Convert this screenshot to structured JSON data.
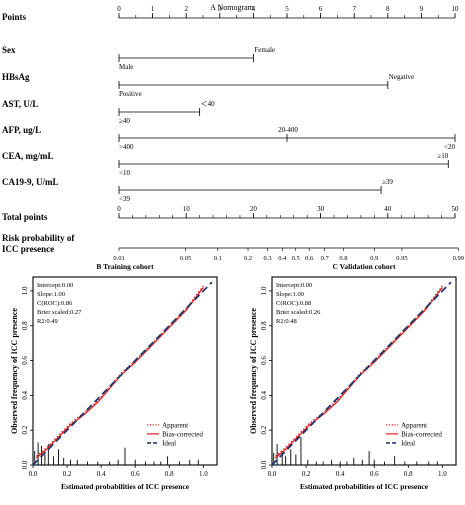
{
  "figure": {
    "nomogram_title": "A  Nomogram",
    "panel_b_title": "B  Training cohort",
    "panel_c_title": "C  Validation cohort"
  },
  "nomogram": {
    "rows": [
      {
        "key": "points",
        "label": "Points",
        "kind": "scale",
        "tick_values": [
          0,
          1,
          2,
          3,
          4,
          5,
          6,
          7,
          8,
          9,
          10
        ],
        "minor_step": 0.5
      },
      {
        "key": "sex",
        "label": "Sex",
        "kind": "variable",
        "levels": [
          {
            "text": "Male",
            "points": 0,
            "above": false
          },
          {
            "text": "Female",
            "points": 4,
            "above": true
          }
        ]
      },
      {
        "key": "hbsag",
        "label": "HBsAg",
        "kind": "variable",
        "levels": [
          {
            "text": "Positive",
            "points": 0,
            "above": false
          },
          {
            "text": "Negative",
            "points": 8,
            "above": true
          }
        ]
      },
      {
        "key": "ast",
        "label": "AST, U/L",
        "kind": "variable",
        "levels": [
          {
            "text": "≥40",
            "points": 0,
            "above": false
          },
          {
            "text": "＜40",
            "points": 2.4,
            "above": true
          }
        ]
      },
      {
        "key": "afp",
        "label": "AFP, ug/L",
        "kind": "variable",
        "levels": [
          {
            "text": ">400",
            "points": 0,
            "above": false
          },
          {
            "text": "20-400",
            "points": 5,
            "above": true
          },
          {
            "text": "<20",
            "points": 10,
            "above": false
          }
        ]
      },
      {
        "key": "cea",
        "label": "CEA, mg/mL",
        "kind": "variable",
        "levels": [
          {
            "text": "<10",
            "points": 0,
            "above": false
          },
          {
            "text": "≥10",
            "points": 9.8,
            "above": true
          }
        ]
      },
      {
        "key": "ca199",
        "label": "CA19-9, U/mL",
        "kind": "variable",
        "levels": [
          {
            "text": "<39",
            "points": 0,
            "above": false
          },
          {
            "text": "≥39",
            "points": 7.8,
            "above": true
          }
        ]
      },
      {
        "key": "total",
        "label": "Total points",
        "kind": "scale",
        "tick_values": [
          0,
          10,
          20,
          30,
          40,
          50
        ],
        "minor_step": 2
      },
      {
        "key": "risk",
        "label_lines": [
          "Risk probability of",
          "ICC presence"
        ],
        "kind": "risk",
        "ticks": [
          {
            "text": "0.01",
            "total": 0.0
          },
          {
            "text": "0.05",
            "total": 9.9
          },
          {
            "text": "0.1",
            "total": 14.7
          },
          {
            "text": "0.2",
            "total": 19.2
          },
          {
            "text": "0.3",
            "total": 22.1
          },
          {
            "text": "0.4",
            "total": 24.3
          },
          {
            "text": "0.5",
            "total": 26.3
          },
          {
            "text": "0.6",
            "total": 28.3
          },
          {
            "text": "0.7",
            "total": 30.6
          },
          {
            "text": "0.8",
            "total": 33.4
          },
          {
            "text": "0.9",
            "total": 38.0
          },
          {
            "text": "0.95",
            "total": 42.1
          },
          {
            "text": "0.99",
            "total": 50.5
          }
        ]
      }
    ]
  },
  "chart_data": [
    {
      "type": "line",
      "title": "B  Training cohort",
      "xlabel": "Estimated probabilities of ICC presence",
      "ylabel": "Observed frequency of ICC presence",
      "xlim": [
        0,
        1.08
      ],
      "ylim": [
        0,
        1.08
      ],
      "x_ticks": [
        0.0,
        0.2,
        0.4,
        0.6,
        0.8,
        1.0
      ],
      "y_ticks": [
        0.0,
        0.2,
        0.4,
        0.6,
        0.8,
        1.0
      ],
      "stats": [
        "Intercept:0.00",
        "Slope:1.00",
        "C(ROC):0.86",
        "Brier scaled:0.27",
        "R2:0.49"
      ],
      "legend_position": "bottom-right",
      "series": [
        {
          "name": "Apparent",
          "style": "dotted",
          "color": "#e41a1c",
          "x": [
            0.02,
            0.08,
            0.15,
            0.22,
            0.3,
            0.38,
            0.45,
            0.52,
            0.6,
            0.7,
            0.8,
            0.9,
            1.0
          ],
          "y": [
            0.05,
            0.1,
            0.17,
            0.24,
            0.3,
            0.37,
            0.45,
            0.53,
            0.6,
            0.7,
            0.8,
            0.9,
            1.03
          ]
        },
        {
          "name": "Bias-corrected",
          "style": "solid",
          "color": "#e41a1c",
          "x": [
            0.02,
            0.08,
            0.15,
            0.22,
            0.3,
            0.38,
            0.45,
            0.52,
            0.6,
            0.7,
            0.8,
            0.9,
            1.0
          ],
          "y": [
            0.04,
            0.09,
            0.16,
            0.23,
            0.29,
            0.36,
            0.44,
            0.52,
            0.59,
            0.69,
            0.79,
            0.89,
            1.02
          ]
        },
        {
          "name": "Ideal",
          "style": "dashed",
          "color": "#1f3a70",
          "x": [
            0,
            1.05
          ],
          "y": [
            0,
            1.05
          ]
        }
      ],
      "rug": [
        {
          "x": 0.01,
          "h": 0.08
        },
        {
          "x": 0.03,
          "h": 0.13
        },
        {
          "x": 0.05,
          "h": 0.11
        },
        {
          "x": 0.07,
          "h": 0.06
        },
        {
          "x": 0.09,
          "h": 0.12
        },
        {
          "x": 0.12,
          "h": 0.05
        },
        {
          "x": 0.15,
          "h": 0.09
        },
        {
          "x": 0.18,
          "h": 0.04
        },
        {
          "x": 0.22,
          "h": 0.03
        },
        {
          "x": 0.26,
          "h": 0.03
        },
        {
          "x": 0.32,
          "h": 0.02
        },
        {
          "x": 0.38,
          "h": 0.02
        },
        {
          "x": 0.45,
          "h": 0.02
        },
        {
          "x": 0.5,
          "h": 0.03
        },
        {
          "x": 0.54,
          "h": 0.1
        },
        {
          "x": 0.6,
          "h": 0.03
        },
        {
          "x": 0.66,
          "h": 0.02
        },
        {
          "x": 0.71,
          "h": 0.02
        },
        {
          "x": 0.75,
          "h": 0.02
        },
        {
          "x": 0.79,
          "h": 0.05
        },
        {
          "x": 0.86,
          "h": 0.02
        },
        {
          "x": 0.92,
          "h": 0.03
        },
        {
          "x": 0.97,
          "h": 0.03
        }
      ]
    },
    {
      "type": "line",
      "title": "C  Validation cohort",
      "xlabel": "Estimated probabilities of ICC presence",
      "ylabel": "Observed frequency of ICC presence",
      "xlim": [
        0,
        1.08
      ],
      "ylim": [
        0,
        1.08
      ],
      "x_ticks": [
        0.0,
        0.2,
        0.4,
        0.6,
        0.8,
        1.0
      ],
      "y_ticks": [
        0.0,
        0.2,
        0.4,
        0.6,
        0.8,
        1.0
      ],
      "stats": [
        "Intercept:0.00",
        "Slope:1.00",
        "C(ROC):0.88",
        "Brier scaled:0.26",
        "R2:0.48"
      ],
      "legend_position": "bottom-right",
      "series": [
        {
          "name": "Apparent",
          "style": "dotted",
          "color": "#e41a1c",
          "x": [
            0.02,
            0.08,
            0.15,
            0.22,
            0.3,
            0.38,
            0.45,
            0.52,
            0.6,
            0.7,
            0.8,
            0.9,
            1.0
          ],
          "y": [
            0.05,
            0.1,
            0.17,
            0.24,
            0.3,
            0.37,
            0.45,
            0.53,
            0.6,
            0.7,
            0.8,
            0.9,
            1.03
          ]
        },
        {
          "name": "Bias-corrected",
          "style": "solid",
          "color": "#e41a1c",
          "x": [
            0.02,
            0.08,
            0.15,
            0.22,
            0.3,
            0.38,
            0.45,
            0.52,
            0.6,
            0.7,
            0.8,
            0.9,
            1.0
          ],
          "y": [
            0.04,
            0.09,
            0.16,
            0.23,
            0.29,
            0.36,
            0.44,
            0.52,
            0.59,
            0.69,
            0.79,
            0.89,
            1.02
          ]
        },
        {
          "name": "Ideal",
          "style": "dashed",
          "color": "#1f3a70",
          "x": [
            0,
            1.05
          ],
          "y": [
            0,
            1.05
          ]
        }
      ],
      "rug": [
        {
          "x": 0.01,
          "h": 0.07
        },
        {
          "x": 0.03,
          "h": 0.12
        },
        {
          "x": 0.06,
          "h": 0.08
        },
        {
          "x": 0.08,
          "h": 0.05
        },
        {
          "x": 0.11,
          "h": 0.09
        },
        {
          "x": 0.14,
          "h": 0.06
        },
        {
          "x": 0.17,
          "h": 0.16
        },
        {
          "x": 0.21,
          "h": 0.03
        },
        {
          "x": 0.26,
          "h": 0.02
        },
        {
          "x": 0.3,
          "h": 0.02
        },
        {
          "x": 0.35,
          "h": 0.03
        },
        {
          "x": 0.4,
          "h": 0.02
        },
        {
          "x": 0.44,
          "h": 0.02
        },
        {
          "x": 0.48,
          "h": 0.04
        },
        {
          "x": 0.53,
          "h": 0.03
        },
        {
          "x": 0.57,
          "h": 0.08
        },
        {
          "x": 0.6,
          "h": 0.03
        },
        {
          "x": 0.66,
          "h": 0.02
        },
        {
          "x": 0.72,
          "h": 0.05
        },
        {
          "x": 0.78,
          "h": 0.02
        },
        {
          "x": 0.85,
          "h": 0.02
        },
        {
          "x": 0.92,
          "h": 0.02
        },
        {
          "x": 0.97,
          "h": 0.02
        }
      ]
    }
  ]
}
